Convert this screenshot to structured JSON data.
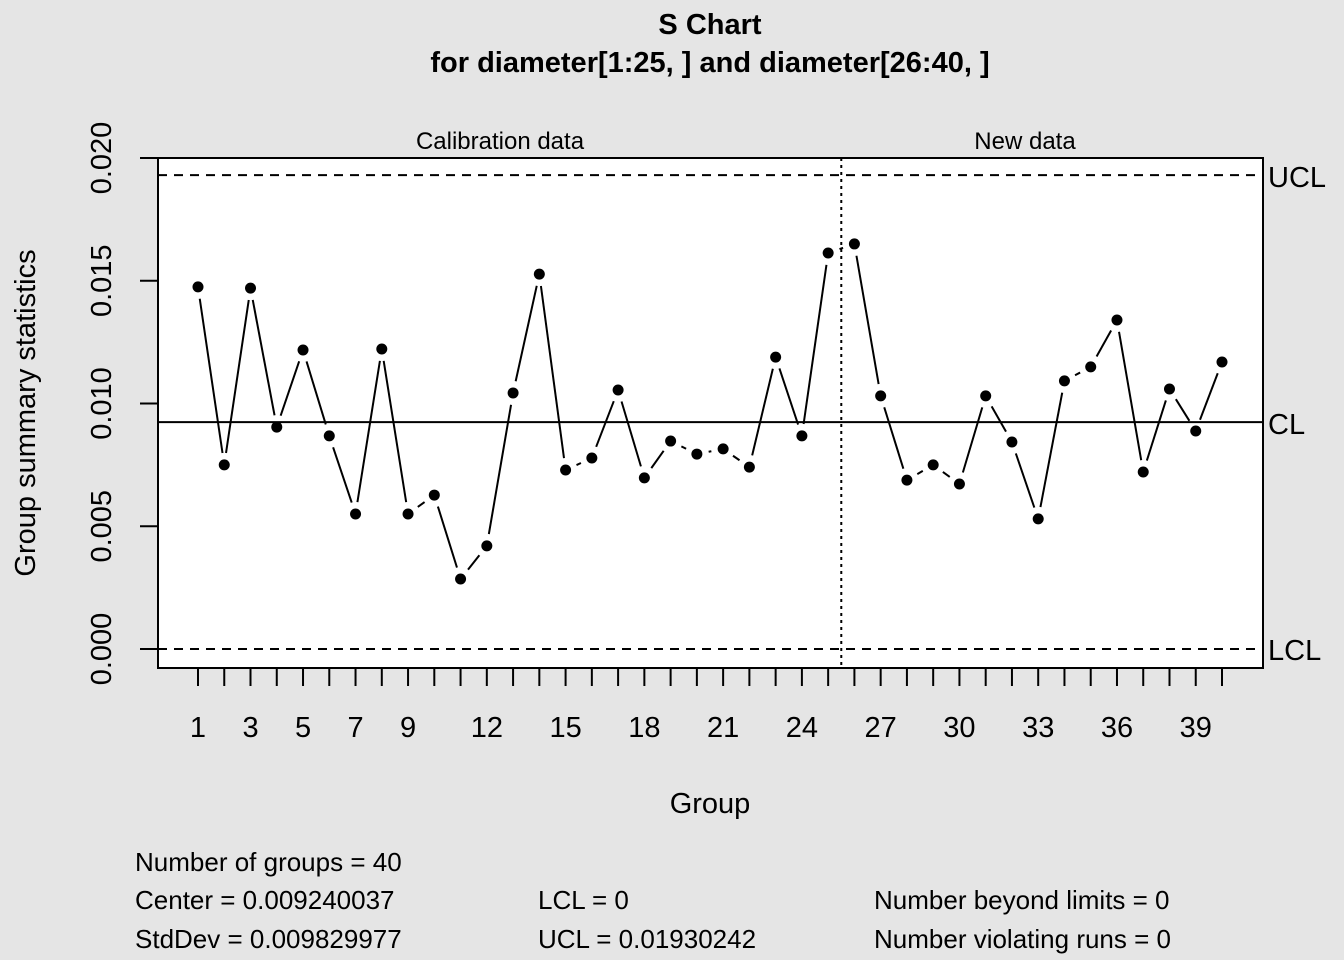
{
  "chart_data": {
    "type": "line",
    "title": "S Chart",
    "subtitle": "for diameter[1:25, ] and diameter[26:40, ]",
    "xlabel": "Group",
    "ylabel": "Group summary statistics",
    "ylim": [
      0,
      0.02
    ],
    "yticks": [
      "0.000",
      "0.005",
      "0.010",
      "0.015",
      "0.020"
    ],
    "ytick_values": [
      0,
      0.005,
      0.01,
      0.015,
      0.02
    ],
    "xtick_labels": [
      1,
      3,
      5,
      7,
      9,
      12,
      15,
      18,
      21,
      24,
      27,
      30,
      33,
      36,
      39
    ],
    "sections": [
      {
        "label": "Calibration data",
        "groups": [
          1,
          25
        ]
      },
      {
        "label": "New data",
        "groups": [
          26,
          40
        ]
      }
    ],
    "limits": {
      "UCL": 0.01930242,
      "CL": 0.009240037,
      "LCL": 0,
      "ucl_label": "UCL",
      "cl_label": "CL",
      "lcl_label": "LCL"
    },
    "x": [
      1,
      2,
      3,
      4,
      5,
      6,
      7,
      8,
      9,
      10,
      11,
      12,
      13,
      14,
      15,
      16,
      17,
      18,
      19,
      20,
      21,
      22,
      23,
      24,
      25,
      26,
      27,
      28,
      29,
      30,
      31,
      32,
      33,
      34,
      35,
      36,
      37,
      38,
      39,
      40
    ],
    "values": [
      0.01475,
      0.0075,
      0.0147,
      0.00904,
      0.01218,
      0.00868,
      0.0055,
      0.01222,
      0.0055,
      0.00627,
      0.00285,
      0.0042,
      0.01043,
      0.01527,
      0.00729,
      0.00778,
      0.01055,
      0.00697,
      0.00847,
      0.00794,
      0.00815,
      0.00741,
      0.01189,
      0.00868,
      0.01613,
      0.0165,
      0.01031,
      0.00688,
      0.0075,
      0.00672,
      0.01031,
      0.00843,
      0.0053,
      0.01092,
      0.01149,
      0.0134,
      0.00721,
      0.01059,
      0.00888,
      0.01169
    ]
  },
  "stats": {
    "groups": "Number of groups = 40",
    "center": "Center = 0.009240037",
    "stddev": "StdDev = 0.009829977",
    "lcl": "LCL = 0",
    "ucl": "UCL = 0.01930242",
    "beyond": "Number beyond limits = 0",
    "violating": "Number violating runs = 0"
  }
}
